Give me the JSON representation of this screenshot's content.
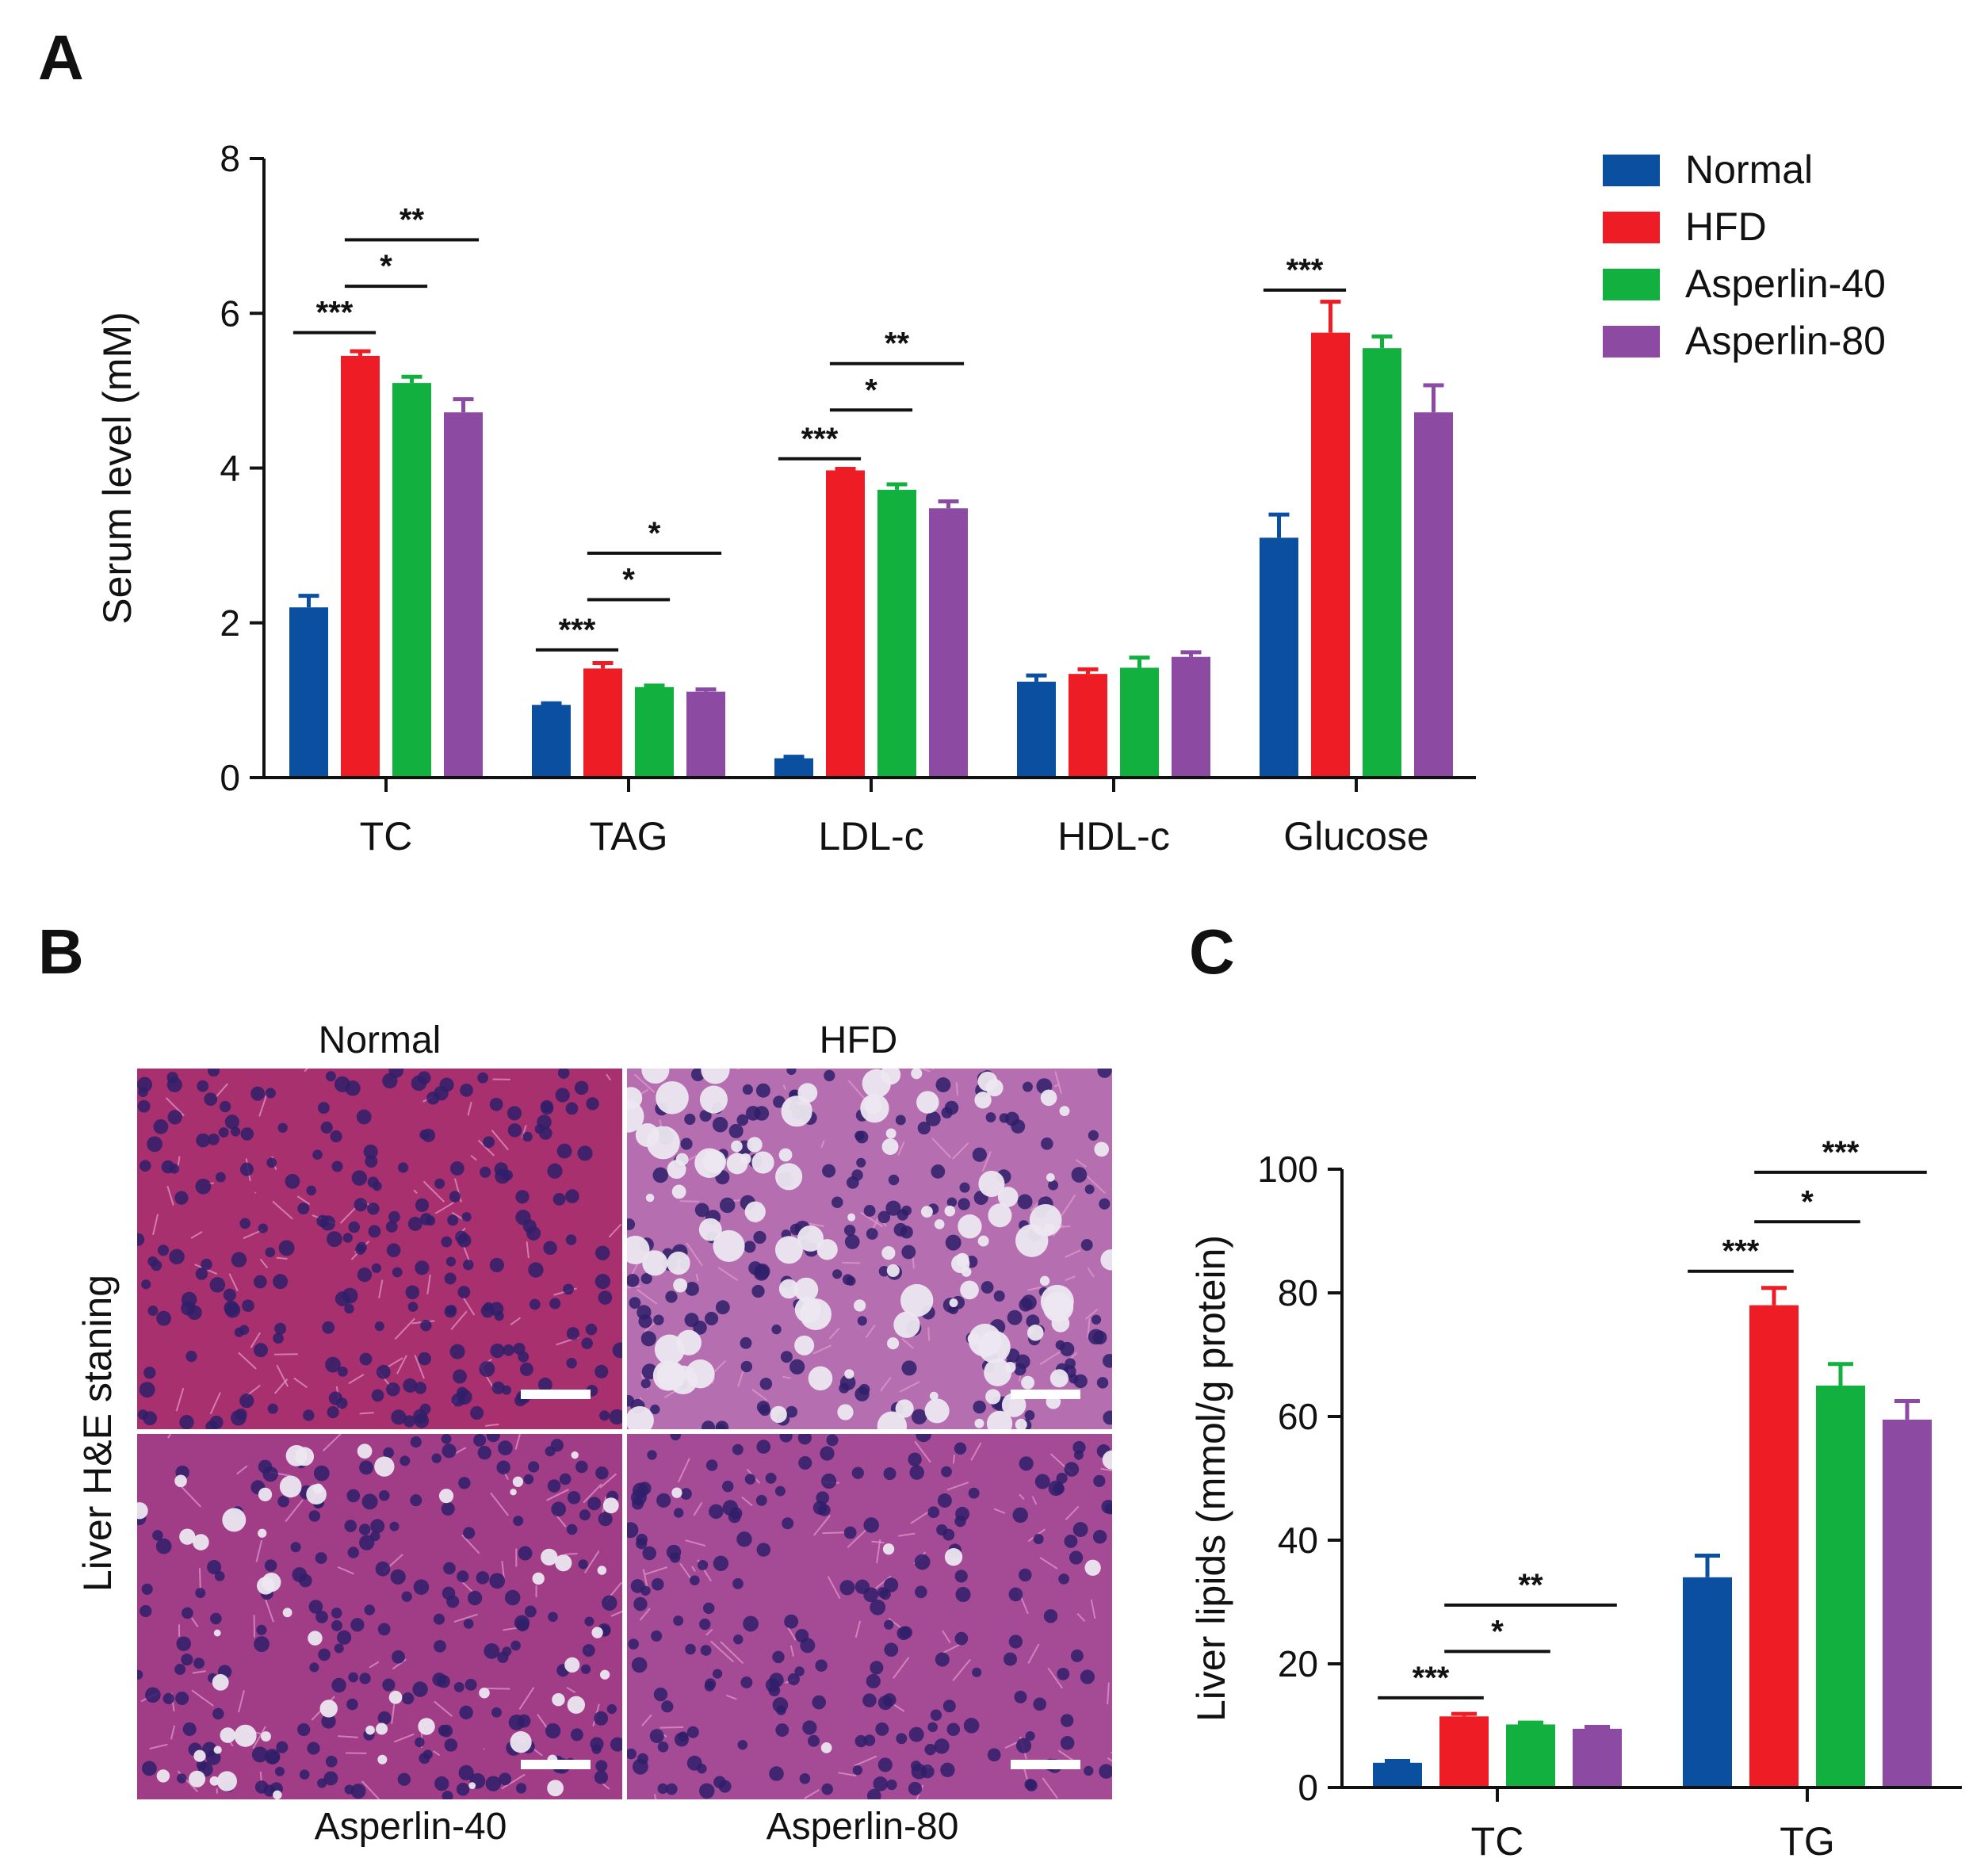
{
  "panels": {
    "a": "A",
    "b": "B",
    "c": "C"
  },
  "colors": {
    "Normal": "#0a4fa0",
    "HFD": "#ee1c24",
    "Asperlin-40": "#12b03e",
    "Asperlin-80": "#8c4aa3"
  },
  "legend": [
    "Normal",
    "HFD",
    "Asperlin-40",
    "Asperlin-80"
  ],
  "panel_b": {
    "ylabel": "Liver H&E staning",
    "tiles": [
      {
        "label": "Normal",
        "kind": "normal"
      },
      {
        "label": "HFD",
        "kind": "hfd"
      },
      {
        "label": "Asperlin-40",
        "kind": "a40"
      },
      {
        "label": "Asperlin-80",
        "kind": "a80"
      }
    ]
  },
  "chart_data": [
    {
      "type": "bar",
      "panel": "A",
      "title": "",
      "xlabel": "",
      "ylabel": "Serum level (mM)",
      "ylim": [
        0,
        8
      ],
      "yticks": [
        "0",
        "2",
        "4",
        "6",
        "8"
      ],
      "categories": [
        "TC",
        "TAG",
        "LDL-c",
        "HDL-c",
        "Glucose"
      ],
      "series": [
        {
          "name": "Normal",
          "values": [
            2.2,
            0.94,
            0.25,
            1.24,
            3.1
          ],
          "errors": [
            0.15,
            0.02,
            0.02,
            0.08,
            0.3
          ]
        },
        {
          "name": "HFD",
          "values": [
            5.45,
            1.41,
            3.97,
            1.34,
            5.75
          ],
          "errors": [
            0.06,
            0.07,
            0.02,
            0.06,
            0.4
          ]
        },
        {
          "name": "Asperlin-40",
          "values": [
            5.1,
            1.17,
            3.72,
            1.42,
            5.55
          ],
          "errors": [
            0.08,
            0.02,
            0.07,
            0.13,
            0.15
          ]
        },
        {
          "name": "Asperlin-80",
          "values": [
            4.72,
            1.11,
            3.48,
            1.56,
            4.72
          ],
          "errors": [
            0.17,
            0.03,
            0.09,
            0.06,
            0.35
          ]
        }
      ],
      "significance": [
        {
          "cat": 0,
          "from": 0,
          "to": 1,
          "y": 5.75,
          "label": "***"
        },
        {
          "cat": 0,
          "from": 1,
          "to": 2,
          "y": 6.35,
          "label": "*"
        },
        {
          "cat": 0,
          "from": 1,
          "to": 3,
          "y": 6.95,
          "label": "**"
        },
        {
          "cat": 1,
          "from": 0,
          "to": 1,
          "y": 1.65,
          "label": "***"
        },
        {
          "cat": 1,
          "from": 1,
          "to": 2,
          "y": 2.3,
          "label": "*"
        },
        {
          "cat": 1,
          "from": 1,
          "to": 3,
          "y": 2.9,
          "label": "*"
        },
        {
          "cat": 2,
          "from": 0,
          "to": 1,
          "y": 4.12,
          "label": "***"
        },
        {
          "cat": 2,
          "from": 1,
          "to": 2,
          "y": 4.75,
          "label": "*"
        },
        {
          "cat": 2,
          "from": 1,
          "to": 3,
          "y": 5.35,
          "label": "**"
        },
        {
          "cat": 4,
          "from": 0,
          "to": 1,
          "y": 6.3,
          "label": "***"
        }
      ]
    },
    {
      "type": "bar",
      "panel": "C",
      "title": "",
      "xlabel": "",
      "ylabel": "Liver lipids (mmol/g protein)",
      "ylim": [
        0,
        100
      ],
      "yticks": [
        "0",
        "20",
        "40",
        "60",
        "80",
        "100"
      ],
      "categories": [
        "TC",
        "TG"
      ],
      "series": [
        {
          "name": "Normal",
          "values": [
            4,
            34
          ],
          "errors": [
            0.3,
            3.5
          ]
        },
        {
          "name": "HFD",
          "values": [
            11.5,
            78
          ],
          "errors": [
            0.4,
            2.8
          ]
        },
        {
          "name": "Asperlin-40",
          "values": [
            10.2,
            65
          ],
          "errors": [
            0.3,
            3.5
          ]
        },
        {
          "name": "Asperlin-80",
          "values": [
            9.5,
            59.5
          ],
          "errors": [
            0.3,
            3.0
          ]
        }
      ],
      "significance": [
        {
          "cat": 0,
          "from": 0,
          "to": 1,
          "y": 14.5,
          "label": "***"
        },
        {
          "cat": 0,
          "from": 1,
          "to": 2,
          "y": 22,
          "label": "*"
        },
        {
          "cat": 0,
          "from": 1,
          "to": 3,
          "y": 29.5,
          "label": "**"
        },
        {
          "cat": 1,
          "from": 0,
          "to": 1,
          "y": 83.5,
          "label": "***"
        },
        {
          "cat": 1,
          "from": 1,
          "to": 2,
          "y": 91.5,
          "label": "*"
        },
        {
          "cat": 1,
          "from": 1,
          "to": 3,
          "y": 99.5,
          "label": "***"
        }
      ]
    }
  ]
}
